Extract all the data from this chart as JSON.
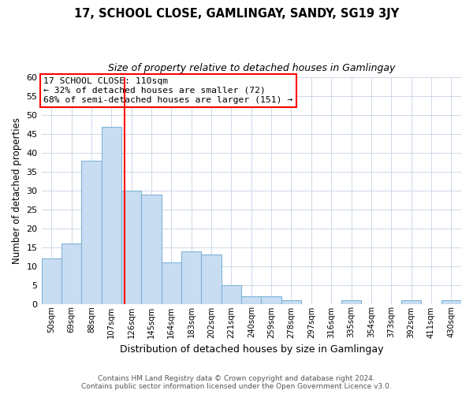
{
  "title": "17, SCHOOL CLOSE, GAMLINGAY, SANDY, SG19 3JY",
  "subtitle": "Size of property relative to detached houses in Gamlingay",
  "xlabel": "Distribution of detached houses by size in Gamlingay",
  "ylabel": "Number of detached properties",
  "footer_line1": "Contains HM Land Registry data © Crown copyright and database right 2024.",
  "footer_line2": "Contains public sector information licensed under the Open Government Licence v3.0.",
  "bin_labels": [
    "50sqm",
    "69sqm",
    "88sqm",
    "107sqm",
    "126sqm",
    "145sqm",
    "164sqm",
    "183sqm",
    "202sqm",
    "221sqm",
    "240sqm",
    "259sqm",
    "278sqm",
    "297sqm",
    "316sqm",
    "335sqm",
    "354sqm",
    "373sqm",
    "392sqm",
    "411sqm",
    "430sqm"
  ],
  "bin_values": [
    12,
    16,
    38,
    47,
    30,
    29,
    11,
    14,
    13,
    5,
    2,
    2,
    1,
    0,
    0,
    1,
    0,
    0,
    1,
    0,
    1
  ],
  "bar_color": "#c9ddf2",
  "bar_edge_color": "#7db3d8",
  "ylim": [
    0,
    60
  ],
  "yticks": [
    0,
    5,
    10,
    15,
    20,
    25,
    30,
    35,
    40,
    45,
    50,
    55,
    60
  ],
  "property_line_x": 3.65,
  "property_line_label": "17 SCHOOL CLOSE: 110sqm",
  "annotation_line1": "← 32% of detached houses are smaller (72)",
  "annotation_line2": "68% of semi-detached houses are larger (151) →",
  "vline_color": "red",
  "annotation_box_edge_color": "red",
  "bg_color": "white",
  "grid_color": "#cdd8e8"
}
